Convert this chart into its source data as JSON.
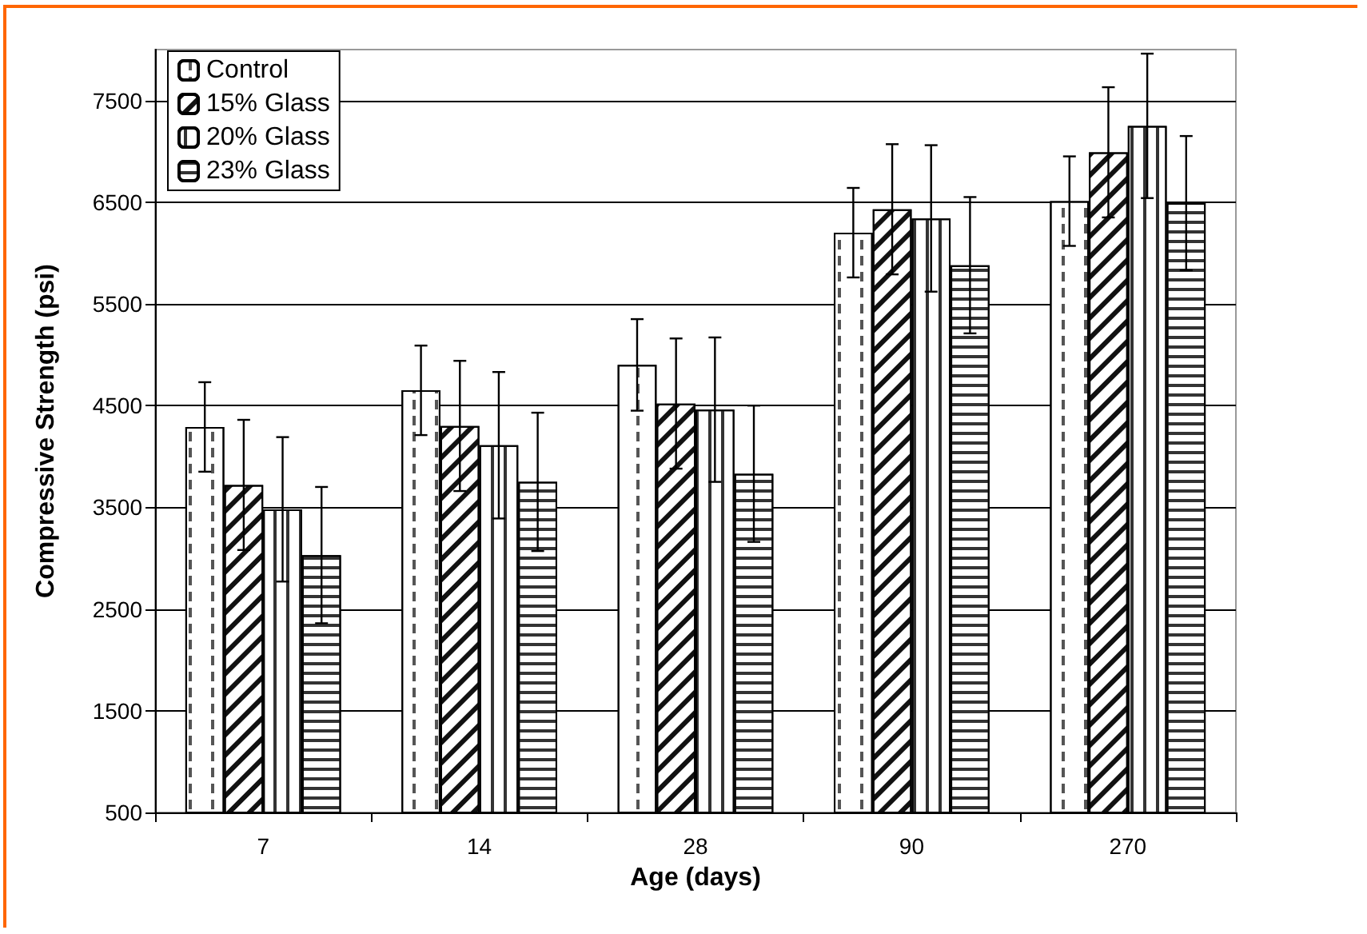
{
  "chart_data": {
    "type": "bar",
    "xlabel": "Age (days)",
    "ylabel": "Compressive Strength (psi)",
    "categories": [
      "7",
      "14",
      "28",
      "90",
      "270"
    ],
    "series": [
      {
        "name": "Control",
        "color": "#ffffff",
        "values": [
          4290,
          4650,
          4900,
          6200,
          6510
        ],
        "errors": [
          440,
          440,
          450,
          440,
          440
        ]
      },
      {
        "name": "15% Glass",
        "color": "#ffffff",
        "values": [
          3720,
          4300,
          4520,
          6430,
          6990
        ],
        "errors": [
          640,
          640,
          640,
          640,
          640
        ]
      },
      {
        "name": "20% Glass",
        "color": "#ffffff",
        "values": [
          3480,
          4110,
          4460,
          6340,
          7250
        ],
        "errors": [
          710,
          720,
          710,
          720,
          710
        ]
      },
      {
        "name": "23% Glass",
        "color": "#ffffff",
        "values": [
          3030,
          3750,
          3830,
          5880,
          6490
        ],
        "errors": [
          670,
          680,
          670,
          670,
          660
        ]
      }
    ],
    "ylim": [
      500,
      8000
    ],
    "yticks": [
      500,
      1500,
      2500,
      3500,
      4500,
      5500,
      6500,
      7500
    ],
    "grid": "y",
    "legend": "top left"
  }
}
